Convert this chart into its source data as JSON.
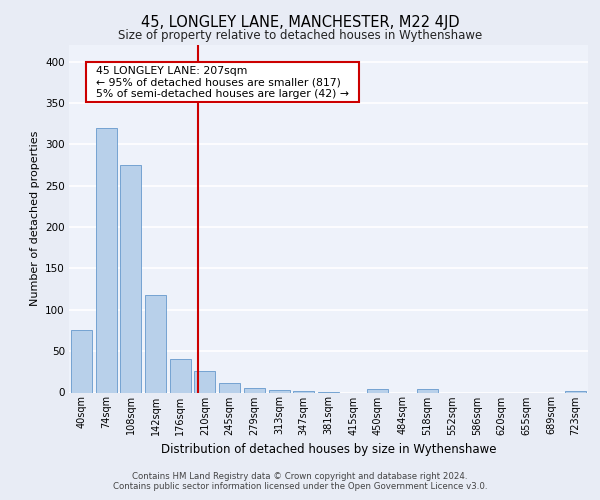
{
  "title": "45, LONGLEY LANE, MANCHESTER, M22 4JD",
  "subtitle": "Size of property relative to detached houses in Wythenshawe",
  "xlabel": "Distribution of detached houses by size in Wythenshawe",
  "ylabel": "Number of detached properties",
  "footer_line1": "Contains HM Land Registry data © Crown copyright and database right 2024.",
  "footer_line2": "Contains public sector information licensed under the Open Government Licence v3.0.",
  "categories": [
    "40sqm",
    "74sqm",
    "108sqm",
    "142sqm",
    "176sqm",
    "210sqm",
    "245sqm",
    "279sqm",
    "313sqm",
    "347sqm",
    "381sqm",
    "415sqm",
    "450sqm",
    "484sqm",
    "518sqm",
    "552sqm",
    "586sqm",
    "620sqm",
    "655sqm",
    "689sqm",
    "723sqm"
  ],
  "values": [
    75,
    320,
    275,
    118,
    40,
    26,
    12,
    5,
    3,
    2,
    1,
    0,
    4,
    0,
    4,
    0,
    0,
    0,
    0,
    0,
    2
  ],
  "bar_color": "#b8d0ea",
  "bar_edge_color": "#6699cc",
  "bg_color": "#e8ecf5",
  "plot_bg_color": "#eef2fa",
  "grid_color": "#ffffff",
  "red_line_x": 4.72,
  "annotation_text": "  45 LONGLEY LANE: 207sqm  \n  ← 95% of detached houses are smaller (817)  \n  5% of semi-detached houses are larger (42) →  ",
  "annotation_box_color": "#ffffff",
  "annotation_box_edge": "#cc0000",
  "red_line_color": "#cc0000",
  "ylim": [
    0,
    420
  ],
  "yticks": [
    0,
    50,
    100,
    150,
    200,
    250,
    300,
    350,
    400
  ]
}
